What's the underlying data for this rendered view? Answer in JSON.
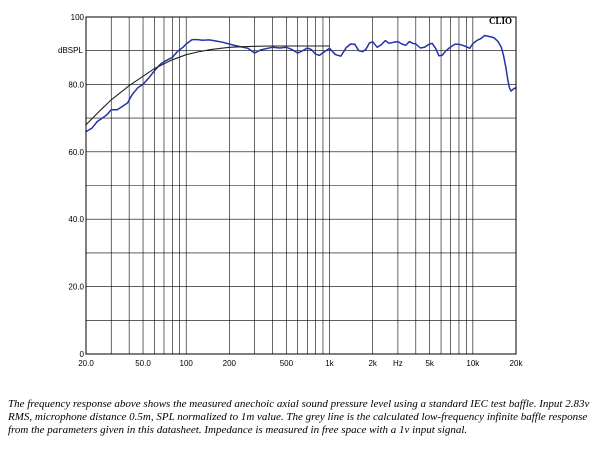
{
  "chart_data": {
    "type": "line",
    "brand": "CLIO",
    "ylabel": "dBSPL",
    "xscale": "log",
    "xlim": [
      20,
      20000
    ],
    "ylim": [
      0,
      100
    ],
    "grid": true,
    "y_ticks": [
      {
        "value": 100,
        "label": "100"
      },
      {
        "value": 80,
        "label": "80.0"
      },
      {
        "value": 60,
        "label": "60.0"
      },
      {
        "value": 40,
        "label": "40.0"
      },
      {
        "value": 20,
        "label": "20.0"
      },
      {
        "value": 0,
        "label": "0"
      }
    ],
    "x_ticks": [
      {
        "value": 20,
        "label": "20.0"
      },
      {
        "value": 50,
        "label": "50.0"
      },
      {
        "value": 100,
        "label": "100"
      },
      {
        "value": 200,
        "label": "200"
      },
      {
        "value": 500,
        "label": "500"
      },
      {
        "value": 1000,
        "label": "1k"
      },
      {
        "value": 2000,
        "label": "2k"
      },
      {
        "value": 3000,
        "label": "Hz"
      },
      {
        "value": 5000,
        "label": "5k"
      },
      {
        "value": 10000,
        "label": "10k"
      },
      {
        "value": 20000,
        "label": "20k"
      }
    ],
    "series": [
      {
        "color": "#2233aa",
        "x": [
          20,
          21,
          22,
          24,
          26,
          28,
          30,
          33,
          36,
          39,
          42,
          46,
          50,
          55,
          60,
          66,
          72,
          80,
          88,
          95,
          100,
          110,
          120,
          130,
          145,
          160,
          180,
          200,
          220,
          245,
          270,
          300,
          330,
          370,
          400,
          450,
          500,
          550,
          600,
          650,
          700,
          750,
          800,
          850,
          900,
          1000,
          1100,
          1200,
          1300,
          1400,
          1500,
          1600,
          1700,
          1800,
          1900,
          2000,
          2150,
          2300,
          2450,
          2600,
          2800,
          3000,
          3200,
          3400,
          3600,
          3800,
          4000,
          4300,
          4600,
          4900,
          5200,
          5500,
          5800,
          6100,
          6500,
          7000,
          7500,
          8000,
          8500,
          9000,
          9500,
          10000,
          10700,
          11400,
          12100,
          13000,
          14000,
          15000,
          15800,
          16400,
          17000,
          17500,
          18000,
          18500,
          19000,
          19500,
          20000
        ],
        "y": [
          66,
          66.5,
          67,
          69,
          70,
          71,
          72.5,
          72.5,
          73.5,
          74.5,
          77,
          79,
          80,
          82,
          84,
          86,
          87,
          88,
          90,
          91,
          92,
          93.3,
          93.3,
          93.1,
          93.2,
          92.9,
          92.5,
          92,
          91.5,
          91.1,
          90.7,
          89.3,
          90.2,
          90.7,
          91,
          90.8,
          91,
          90.3,
          89.3,
          90,
          90.8,
          90.3,
          89,
          88.6,
          89.4,
          90.7,
          88.8,
          88.4,
          90.8,
          92,
          91.9,
          90,
          89.7,
          90.5,
          92.3,
          92.6,
          91,
          91.8,
          93,
          92.2,
          92.5,
          92.7,
          92,
          91.6,
          92.7,
          92.2,
          92,
          90.8,
          91,
          91.8,
          92.2,
          90.7,
          88.5,
          88.6,
          90,
          91.1,
          91.9,
          91.9,
          91.6,
          91.2,
          90.7,
          92.1,
          93.1,
          93.6,
          94.5,
          94.2,
          93.9,
          92.7,
          91,
          88.5,
          85,
          81.5,
          79,
          78,
          78.5,
          78.8,
          79
        ]
      },
      {
        "color": "#222222",
        "x": [
          20,
          25,
          30,
          40,
          50,
          60,
          70,
          80,
          100,
          120,
          150,
          200,
          250,
          300,
          400,
          500,
          600,
          700,
          800,
          1000
        ],
        "y": [
          68,
          72.2,
          75.4,
          79.6,
          82.4,
          84.7,
          86.1,
          87.3,
          88.8,
          89.6,
          90.4,
          91,
          91.2,
          91.3,
          91.4,
          91.4,
          91.4,
          91.4,
          91.4,
          91.4
        ]
      }
    ]
  },
  "caption": "The frequency response above shows the measured anechoic axial sound pressure level using a standard IEC test baffle. Input 2.83v RMS, microphone distance 0.5m, SPL normalized to 1m value. The grey line is the calculated low-frequency infinite baffle response from the parameters given in this datasheet. Impedance is measured in free space with a 1v input signal."
}
